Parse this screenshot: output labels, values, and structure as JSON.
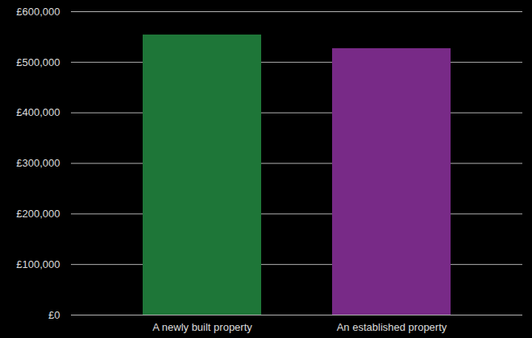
{
  "chart_data": {
    "type": "bar",
    "categories": [
      "A newly built property",
      "An established property"
    ],
    "values": [
      554000,
      527000
    ],
    "colors": [
      "#1e7638",
      "#782a87"
    ],
    "ylim": [
      0,
      600000
    ],
    "yticks": [
      {
        "value": 0,
        "label": "£0"
      },
      {
        "value": 100000,
        "label": "£100,000"
      },
      {
        "value": 200000,
        "label": "£200,000"
      },
      {
        "value": 300000,
        "label": "£300,000"
      },
      {
        "value": 400000,
        "label": "£400,000"
      },
      {
        "value": 500000,
        "label": "£500,000"
      },
      {
        "value": 600000,
        "label": "£600,000"
      }
    ],
    "grid": true
  }
}
